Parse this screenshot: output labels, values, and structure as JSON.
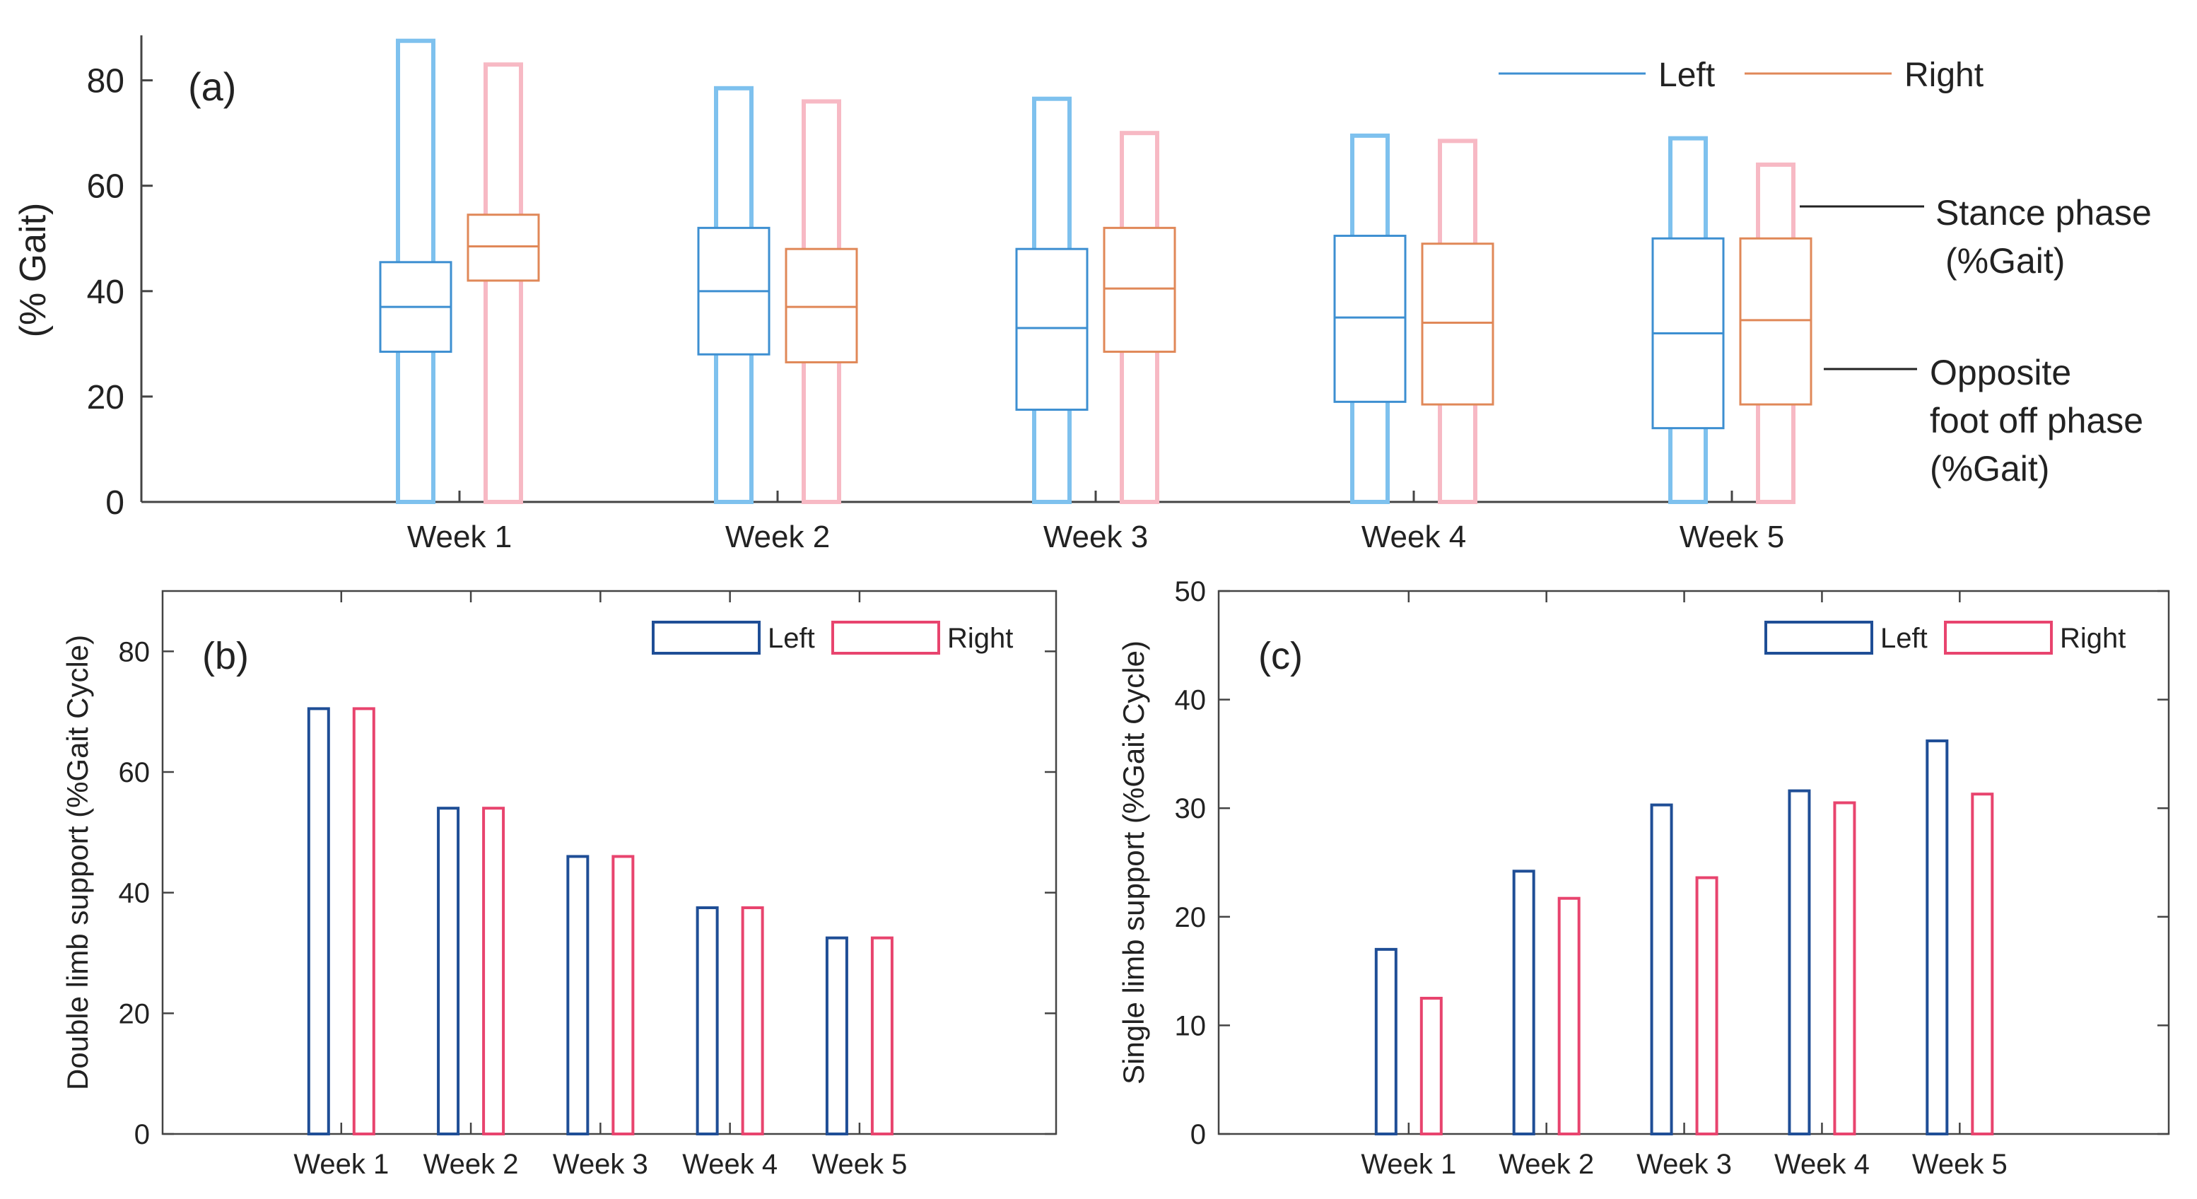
{
  "colors": {
    "left_whisker": "#7ec1ee",
    "right_whisker": "#f7b9c4",
    "left_box": "#3d8fd1",
    "right_box": "#e08858",
    "left_bar": "#1f4e96",
    "right_bar": "#e8446e",
    "axis": "#444444"
  },
  "chart_data": [
    {
      "type": "box",
      "panel_label": "(a)",
      "ylabel": "(% Gait)",
      "ylim": [
        0,
        88
      ],
      "yticks": [
        0,
        20,
        40,
        60,
        80
      ],
      "categories": [
        "Week 1",
        "Week 2",
        "Week 3",
        "Week 4",
        "Week 5"
      ],
      "legend": [
        "Left",
        "Right"
      ],
      "series": [
        {
          "name": "Left",
          "whisker_max": [
            87.5,
            78.5,
            76.5,
            69.5,
            69
          ],
          "box": [
            [
              28.5,
              37,
              45.5
            ],
            [
              28,
              40,
              52
            ],
            [
              17.5,
              33,
              48
            ],
            [
              19,
              35,
              50.5
            ],
            [
              14,
              32,
              50
            ]
          ]
        },
        {
          "name": "Right",
          "whisker_max": [
            83,
            76,
            70,
            68.5,
            64
          ],
          "box": [
            [
              42,
              48.5,
              54.5
            ],
            [
              26.5,
              37,
              48
            ],
            [
              28.5,
              40.5,
              52
            ],
            [
              18.5,
              34,
              49
            ],
            [
              18.5,
              34.5,
              50
            ]
          ]
        }
      ],
      "annotations": [
        {
          "text": [
            "Stance phase",
            "(%Gait)"
          ]
        },
        {
          "text": [
            "Opposite",
            "foot off phase",
            "(%Gait)"
          ]
        }
      ]
    },
    {
      "type": "bar",
      "panel_label": "(b)",
      "ylabel": "Double limb support (%Gait Cycle)",
      "ylim": [
        0,
        90
      ],
      "yticks": [
        0,
        20,
        40,
        60,
        80
      ],
      "categories": [
        "Week 1",
        "Week 2",
        "Week 3",
        "Week 4",
        "Week 5"
      ],
      "legend": [
        "Left",
        "Right"
      ],
      "series": [
        {
          "name": "Left",
          "values": [
            70.5,
            54,
            46,
            37.5,
            32.5
          ]
        },
        {
          "name": "Right",
          "values": [
            70.5,
            54,
            46,
            37.5,
            32.5
          ]
        }
      ]
    },
    {
      "type": "bar",
      "panel_label": "(c)",
      "ylabel": "Single limb support (%Gait Cycle)",
      "ylim": [
        0,
        50
      ],
      "yticks": [
        0,
        10,
        20,
        30,
        40,
        50
      ],
      "categories": [
        "Week 1",
        "Week 2",
        "Week 3",
        "Week 4",
        "Week 5"
      ],
      "legend": [
        "Left",
        "Right"
      ],
      "series": [
        {
          "name": "Left",
          "values": [
            17,
            24.2,
            30.3,
            31.6,
            36.2
          ]
        },
        {
          "name": "Right",
          "values": [
            12.5,
            21.7,
            23.6,
            30.5,
            31.3
          ]
        }
      ]
    }
  ]
}
